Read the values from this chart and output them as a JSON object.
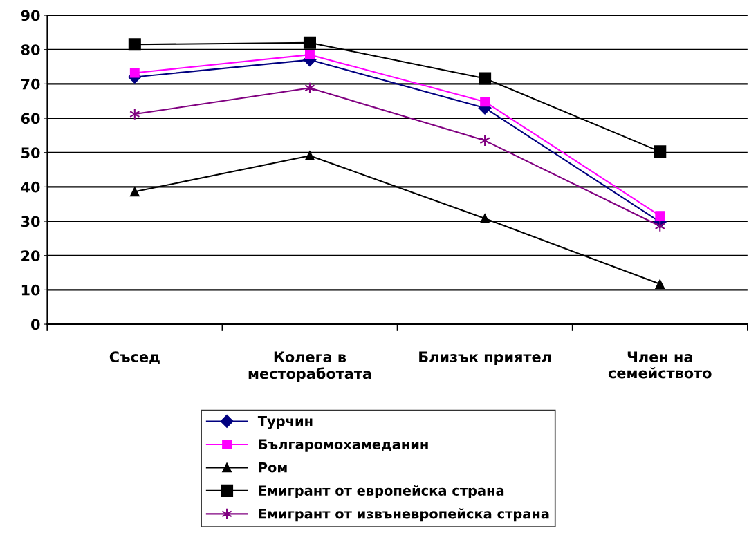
{
  "chart_data": {
    "type": "line",
    "categories": [
      "Съсед",
      "Колега в\nместоработата",
      "Близък приятел",
      "Член на\nсемейството"
    ],
    "series": [
      {
        "name": "Турчин",
        "color": "#000080",
        "marker": "diamond",
        "values": [
          72,
          77,
          63,
          29.8
        ]
      },
      {
        "name": "Българомохамеданин",
        "color": "#ff00ff",
        "marker": "square",
        "values": [
          73.2,
          78.5,
          64.8,
          31.6
        ]
      },
      {
        "name": "Ром",
        "color": "#000000",
        "marker": "triangle",
        "values": [
          38.6,
          49.1,
          30.8,
          11.7
        ]
      },
      {
        "name": "Емигрант от европейска страна",
        "color": "#000000",
        "marker": "square",
        "values": [
          81.5,
          82,
          71.6,
          50.3
        ]
      },
      {
        "name": "Емигрант от извъневропейска страна",
        "color": "#800080",
        "marker": "cross",
        "values": [
          61.2,
          68.8,
          53.5,
          28.6
        ]
      }
    ],
    "ylim": [
      0,
      90
    ],
    "yticks": [
      0,
      10,
      20,
      30,
      40,
      50,
      60,
      70,
      80,
      90
    ],
    "grid": "y",
    "legend": "bottom",
    "line_style": "solid"
  }
}
